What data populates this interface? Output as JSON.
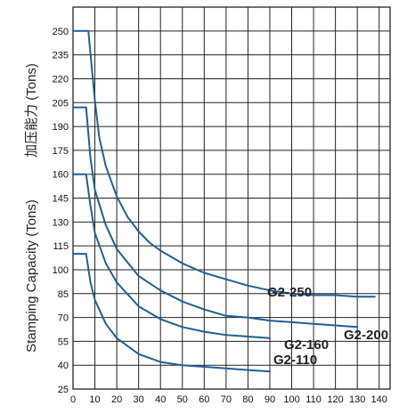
{
  "chart_data": {
    "type": "line",
    "ylabel_primary": "Stamping Capacity (Tons)",
    "ylabel_secondary": "加压能力 (Tons)",
    "xlim": [
      0,
      145
    ],
    "ylim": [
      25,
      265
    ],
    "x_ticks": [
      "0",
      "10",
      "20",
      "30",
      "40",
      "50",
      "60",
      "70",
      "80",
      "90",
      "100",
      "110",
      "120",
      "130",
      "140"
    ],
    "x_tick_values": [
      0,
      10,
      20,
      30,
      40,
      50,
      60,
      70,
      80,
      90,
      100,
      110,
      120,
      130,
      140
    ],
    "y_ticks": [
      "25",
      "40",
      "55",
      "70",
      "85",
      "100",
      "115",
      "130",
      "145",
      "160",
      "175",
      "190",
      "205",
      "220",
      "235",
      "250"
    ],
    "y_tick_values": [
      25,
      40,
      55,
      70,
      85,
      100,
      115,
      130,
      145,
      160,
      175,
      190,
      205,
      220,
      235,
      250
    ],
    "line_color": "#1f5f96",
    "grid": true,
    "series": [
      {
        "name": "G2-250",
        "x": [
          0,
          7,
          10,
          12,
          15,
          20,
          25,
          30,
          35,
          40,
          50,
          60,
          70,
          80,
          90,
          100,
          110,
          120,
          130,
          138
        ],
        "values": [
          250,
          250,
          206,
          183,
          165,
          146,
          133,
          124,
          117,
          112,
          104,
          98,
          94,
          90,
          87,
          85,
          84,
          84,
          83,
          83
        ]
      },
      {
        "name": "G2-200",
        "x": [
          0,
          6,
          8,
          10,
          15,
          20,
          30,
          40,
          50,
          60,
          70,
          80,
          90,
          100,
          110,
          120,
          130
        ],
        "values": [
          202,
          202,
          170,
          150,
          128,
          113,
          96,
          87,
          80,
          75,
          71,
          70,
          68,
          67,
          66,
          65,
          64
        ]
      },
      {
        "name": "G2-160",
        "x": [
          0,
          6,
          8,
          10,
          15,
          20,
          30,
          40,
          50,
          60,
          70,
          80,
          90
        ],
        "values": [
          160,
          160,
          140,
          123,
          104,
          92,
          77,
          69,
          64,
          61,
          59,
          58,
          57
        ]
      },
      {
        "name": "G2-110",
        "x": [
          0,
          6,
          8,
          10,
          15,
          20,
          30,
          40,
          50,
          60,
          70,
          80,
          90
        ],
        "values": [
          110,
          110,
          92,
          81,
          66,
          57,
          47,
          42,
          40,
          39,
          38,
          37,
          36
        ]
      }
    ]
  }
}
